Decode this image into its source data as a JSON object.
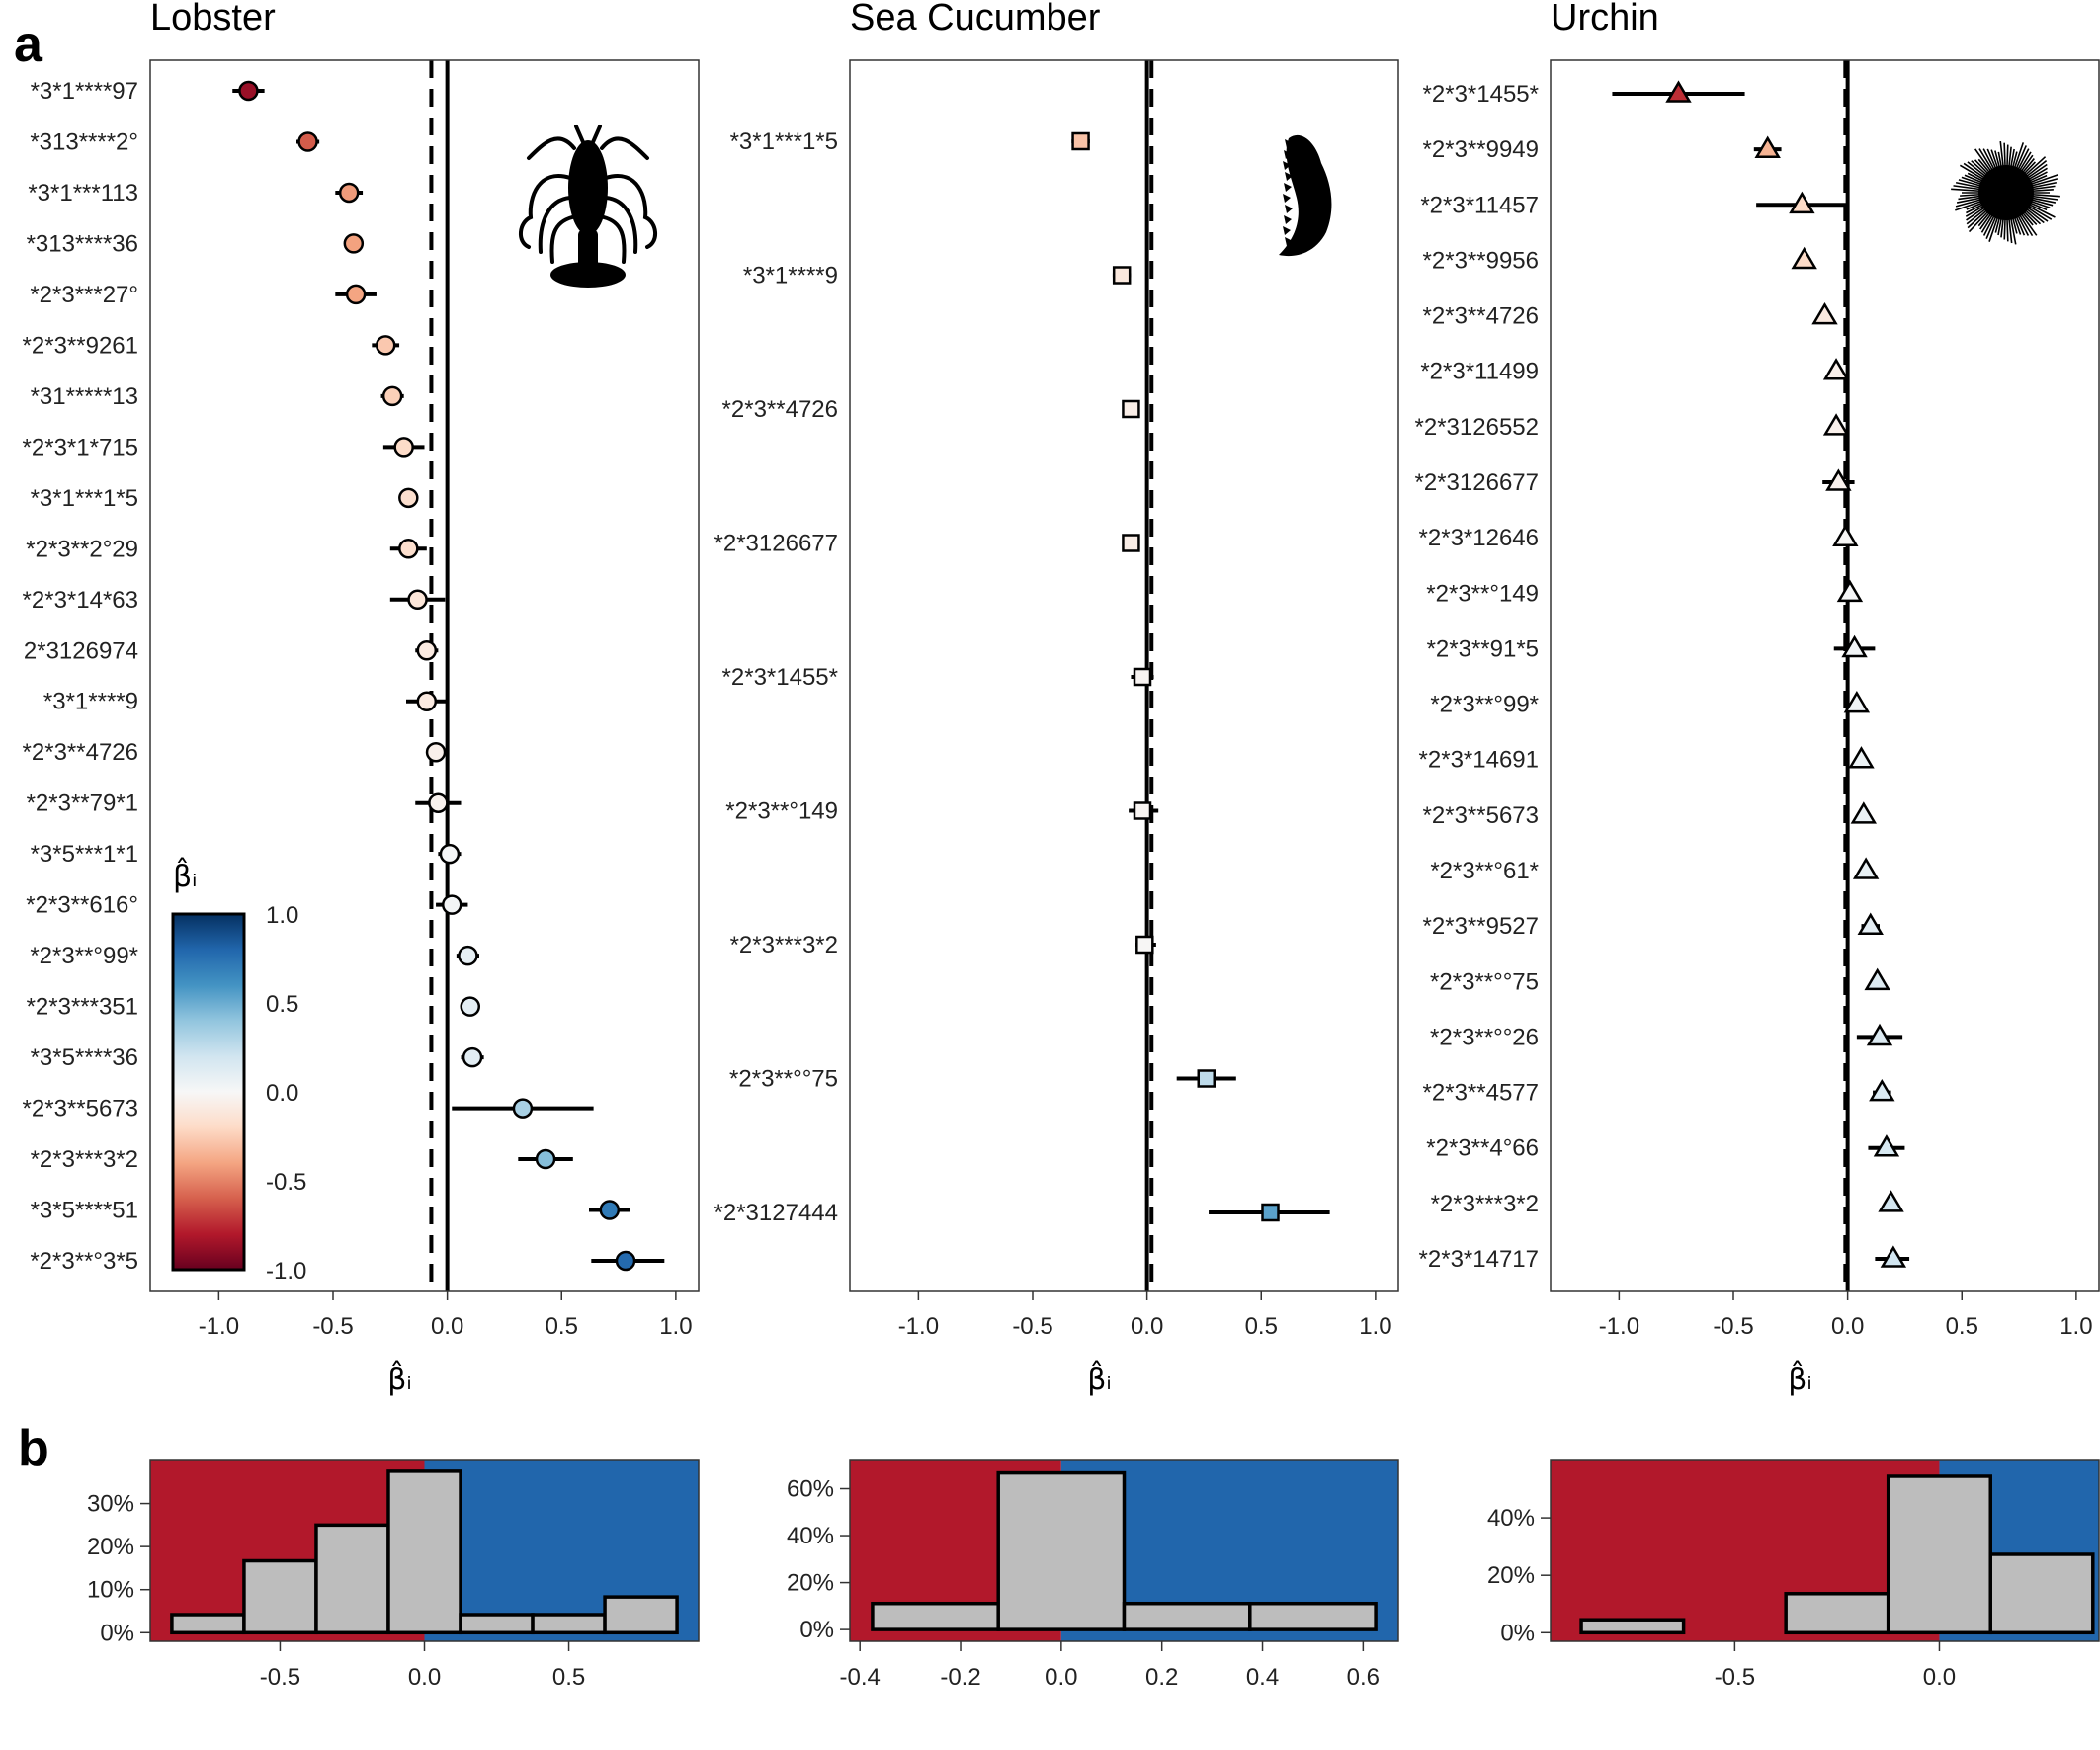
{
  "panel_labels": [
    "a",
    "b"
  ],
  "colorbar": {
    "title": "β̂ᵢ",
    "ticks": [
      1.0,
      0.5,
      0.0,
      -0.5,
      -1.0
    ],
    "tick_labels": [
      "1.0",
      "0.5",
      "0.0",
      "-0.5",
      "-1.0"
    ],
    "colors": [
      "#67001f",
      "#b2182b",
      "#d6604d",
      "#f4a582",
      "#fddbc7",
      "#f7f7f7",
      "#d1e5f0",
      "#92c5de",
      "#4393c3",
      "#2166ac",
      "#053061"
    ]
  },
  "chart_data": [
    {
      "type": "scatter",
      "title": "Lobster",
      "xlabel": "β̂ᵢ",
      "xlim": [
        -1.3,
        1.1
      ],
      "xticks": [
        -1.0,
        -0.5,
        0.0,
        0.5,
        1.0
      ],
      "xtick_labels": [
        "-1.0",
        "-0.5",
        "0.0",
        "0.5",
        "1.0"
      ],
      "marker": "circle",
      "icon": "lobster-icon",
      "dashed_ref": -0.07,
      "solid_ref": 0.0,
      "categories": [
        "*3*1****97",
        "*313****2°",
        "*3*1***113",
        "*313****36",
        "*2*3***27°",
        "*2*3**9261",
        "*31*****13",
        "*2*3*1*715",
        "*3*1***1*5",
        "*2*3**2°29",
        "*2*3*14*63",
        "2*3126974",
        "*3*1****9",
        "*2*3**4726",
        "*2*3**79*1",
        "*3*5***1*1",
        "*2*3**616°",
        "*2*3**°99*",
        "*2*3***351",
        "*3*5****36",
        "*2*3**5673",
        "*2*3***3*2",
        "*3*5****51",
        "*2*3**°3*5"
      ],
      "values": [
        -0.87,
        -0.61,
        -0.43,
        -0.41,
        -0.4,
        -0.27,
        -0.24,
        -0.19,
        -0.17,
        -0.17,
        -0.13,
        -0.09,
        -0.09,
        -0.05,
        -0.04,
        0.01,
        0.02,
        0.09,
        0.1,
        0.11,
        0.33,
        0.43,
        0.71,
        0.78
      ],
      "ci_low": [
        -0.94,
        -0.66,
        -0.49,
        -0.45,
        -0.49,
        -0.33,
        -0.29,
        -0.28,
        -0.21,
        -0.25,
        -0.25,
        -0.14,
        -0.18,
        -0.09,
        -0.14,
        -0.04,
        -0.05,
        0.04,
        0.06,
        0.06,
        0.02,
        0.31,
        0.62,
        0.63
      ],
      "ci_high": [
        -0.8,
        -0.56,
        -0.37,
        -0.37,
        -0.31,
        -0.21,
        -0.19,
        -0.1,
        -0.13,
        -0.09,
        -0.01,
        -0.04,
        0.0,
        -0.01,
        0.06,
        0.06,
        0.09,
        0.14,
        0.14,
        0.16,
        0.64,
        0.55,
        0.8,
        0.95
      ]
    },
    {
      "type": "scatter",
      "title": "Sea Cucumber",
      "xlabel": "β̂ᵢ",
      "xlim": [
        -1.3,
        1.1
      ],
      "xticks": [
        -1.0,
        -0.5,
        0.0,
        0.5,
        1.0
      ],
      "xtick_labels": [
        "-1.0",
        "-0.5",
        "0.0",
        "0.5",
        "1.0"
      ],
      "marker": "square",
      "icon": "sea-cucumber-icon",
      "dashed_ref": 0.02,
      "solid_ref": 0.0,
      "categories": [
        "*3*1***1*5",
        "*3*1****9",
        "*2*3**4726",
        "*2*3126677",
        "*2*3*1455*",
        "*2*3**°149",
        "*2*3***3*2",
        "*2*3**°°75",
        "*2*3127444"
      ],
      "values": [
        -0.29,
        -0.11,
        -0.07,
        -0.07,
        -0.02,
        -0.02,
        -0.01,
        0.26,
        0.54
      ],
      "ci_low": [
        -0.33,
        -0.15,
        -0.1,
        -0.1,
        -0.07,
        -0.08,
        -0.05,
        0.13,
        0.27
      ],
      "ci_high": [
        -0.25,
        -0.07,
        -0.04,
        -0.04,
        0.03,
        0.05,
        0.04,
        0.39,
        0.8
      ]
    },
    {
      "type": "scatter",
      "title": "Urchin",
      "xlabel": "β̂ᵢ",
      "xlim": [
        -1.3,
        1.1
      ],
      "xticks": [
        -1.0,
        -0.5,
        0.0,
        0.5,
        1.0
      ],
      "xtick_labels": [
        "-1.0",
        "-0.5",
        "0.0",
        "0.5",
        "1.0"
      ],
      "marker": "triangle",
      "icon": "urchin-icon",
      "dashed_ref": -0.01,
      "solid_ref": 0.0,
      "categories": [
        "*2*3*1455*",
        "*2*3**9949",
        "*2*3*11457",
        "*2*3**9956",
        "*2*3**4726",
        "*2*3*11499",
        "*2*3126552",
        "*2*3126677",
        "*2*3*12646",
        "*2*3**°149",
        "*2*3**91*5",
        "*2*3**°99*",
        "*2*3*14691",
        "*2*3**5673",
        "*2*3**°61*",
        "*2*3**9527",
        "*2*3**°°75",
        "*2*3**°°26",
        "*2*3**4577",
        "*2*3**4°66",
        "*2*3***3*2",
        "*2*3*14717"
      ],
      "values": [
        -0.74,
        -0.35,
        -0.2,
        -0.19,
        -0.1,
        -0.05,
        -0.05,
        -0.04,
        -0.01,
        0.01,
        0.03,
        0.04,
        0.06,
        0.07,
        0.08,
        0.1,
        0.13,
        0.14,
        0.15,
        0.17,
        0.19,
        0.2
      ],
      "ci_low": [
        -1.03,
        -0.41,
        -0.4,
        -0.22,
        -0.13,
        -0.07,
        -0.07,
        -0.11,
        -0.03,
        -0.01,
        -0.06,
        0.02,
        0.04,
        0.05,
        0.06,
        0.06,
        0.1,
        0.04,
        0.11,
        0.09,
        0.17,
        0.12
      ],
      "ci_high": [
        -0.45,
        -0.29,
        0.0,
        -0.16,
        -0.07,
        -0.03,
        -0.03,
        0.03,
        0.01,
        0.03,
        0.12,
        0.06,
        0.08,
        0.09,
        0.1,
        0.14,
        0.16,
        0.24,
        0.19,
        0.25,
        0.21,
        0.27
      ]
    },
    {
      "type": "bar",
      "subtype": "histogram",
      "xlim": [
        -0.95,
        0.95
      ],
      "ylim": [
        -0.02,
        0.4
      ],
      "xticks": [
        -0.5,
        0.0,
        0.5
      ],
      "xtick_labels": [
        "-0.5",
        "0.0",
        "0.5"
      ],
      "yticks": [
        0.0,
        0.1,
        0.2,
        0.3
      ],
      "ytick_labels": [
        "0%",
        "10%",
        "20%",
        "30%"
      ],
      "background_split": 0.0,
      "bin_edges": [
        -0.875,
        -0.625,
        -0.375,
        -0.125,
        0.125,
        0.375,
        0.625,
        0.875
      ],
      "values": [
        0.042,
        0.167,
        0.25,
        0.375,
        0.042,
        0.042,
        0.083
      ]
    },
    {
      "type": "bar",
      "subtype": "histogram",
      "xlim": [
        -0.42,
        0.67
      ],
      "ylim": [
        -0.05,
        0.72
      ],
      "xticks": [
        -0.4,
        -0.2,
        0.0,
        0.2,
        0.4,
        0.6
      ],
      "xtick_labels": [
        "-0.4",
        "-0.2",
        "0.0",
        "0.2",
        "0.4",
        "0.6"
      ],
      "yticks": [
        0.0,
        0.2,
        0.4,
        0.6
      ],
      "ytick_labels": [
        "0%",
        "20%",
        "40%",
        "60%"
      ],
      "background_split": 0.0,
      "bin_edges": [
        -0.375,
        -0.125,
        0.125,
        0.375,
        0.625
      ],
      "values": [
        0.111,
        0.667,
        0.111,
        0.111
      ]
    },
    {
      "type": "bar",
      "subtype": "histogram",
      "xlim": [
        -0.95,
        0.39
      ],
      "ylim": [
        -0.03,
        0.6
      ],
      "xticks": [
        -0.5,
        0.0
      ],
      "xtick_labels": [
        "-0.5",
        "0.0"
      ],
      "yticks": [
        0.0,
        0.2,
        0.4
      ],
      "ytick_labels": [
        "0%",
        "20%",
        "40%"
      ],
      "background_split": 0.0,
      "bin_edges": [
        -0.875,
        -0.625,
        -0.375,
        -0.125,
        0.125,
        0.375
      ],
      "values": [
        0.045,
        0.0,
        0.136,
        0.545,
        0.273
      ]
    }
  ]
}
